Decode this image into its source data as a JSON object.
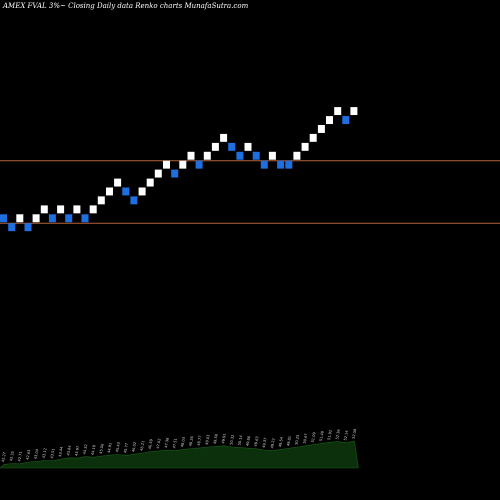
{
  "header": {
    "title": "AMEX  FVAL  3%~  Closing Daily data  Renko  charts MunafaSutra.com"
  },
  "colors": {
    "background": "#000000",
    "up_brick": "#ffffff",
    "down_brick": "#1e6fe0",
    "reference_line": "#b5623a",
    "volume_area": "#0c300c",
    "volume_edge": "#1a5c1a",
    "volume_label": "#d9d9d9"
  },
  "chart_data": {
    "type": "renko",
    "brick_size_percent": 3,
    "ylim": [
      0,
      56
    ],
    "reference_levels": [
      38,
      31
    ],
    "bricks": [
      {
        "dir": "down",
        "level": 31
      },
      {
        "dir": "down",
        "level": 30
      },
      {
        "dir": "up",
        "level": 31
      },
      {
        "dir": "down",
        "level": 30
      },
      {
        "dir": "up",
        "level": 31
      },
      {
        "dir": "up",
        "level": 32
      },
      {
        "dir": "down",
        "level": 31
      },
      {
        "dir": "up",
        "level": 32
      },
      {
        "dir": "down",
        "level": 31
      },
      {
        "dir": "up",
        "level": 32
      },
      {
        "dir": "down",
        "level": 31
      },
      {
        "dir": "up",
        "level": 32
      },
      {
        "dir": "up",
        "level": 33
      },
      {
        "dir": "up",
        "level": 34
      },
      {
        "dir": "up",
        "level": 35
      },
      {
        "dir": "down",
        "level": 34
      },
      {
        "dir": "down",
        "level": 33
      },
      {
        "dir": "up",
        "level": 34
      },
      {
        "dir": "up",
        "level": 35
      },
      {
        "dir": "up",
        "level": 36
      },
      {
        "dir": "up",
        "level": 37
      },
      {
        "dir": "down",
        "level": 36
      },
      {
        "dir": "up",
        "level": 37
      },
      {
        "dir": "up",
        "level": 38
      },
      {
        "dir": "down",
        "level": 37
      },
      {
        "dir": "up",
        "level": 38
      },
      {
        "dir": "up",
        "level": 39
      },
      {
        "dir": "up",
        "level": 40
      },
      {
        "dir": "down",
        "level": 39
      },
      {
        "dir": "down",
        "level": 38
      },
      {
        "dir": "up",
        "level": 39
      },
      {
        "dir": "down",
        "level": 38
      },
      {
        "dir": "down",
        "level": 37
      },
      {
        "dir": "up",
        "level": 38
      },
      {
        "dir": "down",
        "level": 37
      },
      {
        "dir": "down",
        "level": 37
      },
      {
        "dir": "up",
        "level": 38
      },
      {
        "dir": "up",
        "level": 39
      },
      {
        "dir": "up",
        "level": 40
      },
      {
        "dir": "up",
        "level": 41
      },
      {
        "dir": "up",
        "level": 42
      },
      {
        "dir": "up",
        "level": 43
      },
      {
        "dir": "down",
        "level": 42
      },
      {
        "dir": "up",
        "level": 43
      }
    ],
    "volume_levels": [
      0.12,
      0.15,
      0.14,
      0.2,
      0.22,
      0.25,
      0.24,
      0.3,
      0.34,
      0.33,
      0.38,
      0.36,
      0.4,
      0.43,
      0.45,
      0.42,
      0.46,
      0.5,
      0.55,
      0.57,
      0.6,
      0.58,
      0.62,
      0.65,
      0.67,
      0.7,
      0.72,
      0.74,
      0.7,
      0.68,
      0.66,
      0.64,
      0.6,
      0.58,
      0.62,
      0.66,
      0.7,
      0.74,
      0.78,
      0.82,
      0.86,
      0.88,
      0.84,
      0.9
    ],
    "volume_labels": [
      "42.27",
      "42.35",
      "42.71",
      "42.63",
      "43.04",
      "43.12",
      "43.51",
      "43.44",
      "43.84",
      "43.97",
      "44.32",
      "44.18",
      "45.06",
      "44.91",
      "45.43",
      "45.77",
      "46.02",
      "46.21",
      "46.59",
      "47.02",
      "47.38",
      "47.51",
      "48.03",
      "48.26",
      "48.77",
      "49.03",
      "49.58",
      "49.91",
      "50.32",
      "50.14",
      "49.86",
      "49.63",
      "49.37",
      "49.22",
      "49.54",
      "49.81",
      "50.25",
      "50.67",
      "51.09",
      "51.48",
      "51.92",
      "52.36",
      "52.14",
      "52.58"
    ]
  }
}
